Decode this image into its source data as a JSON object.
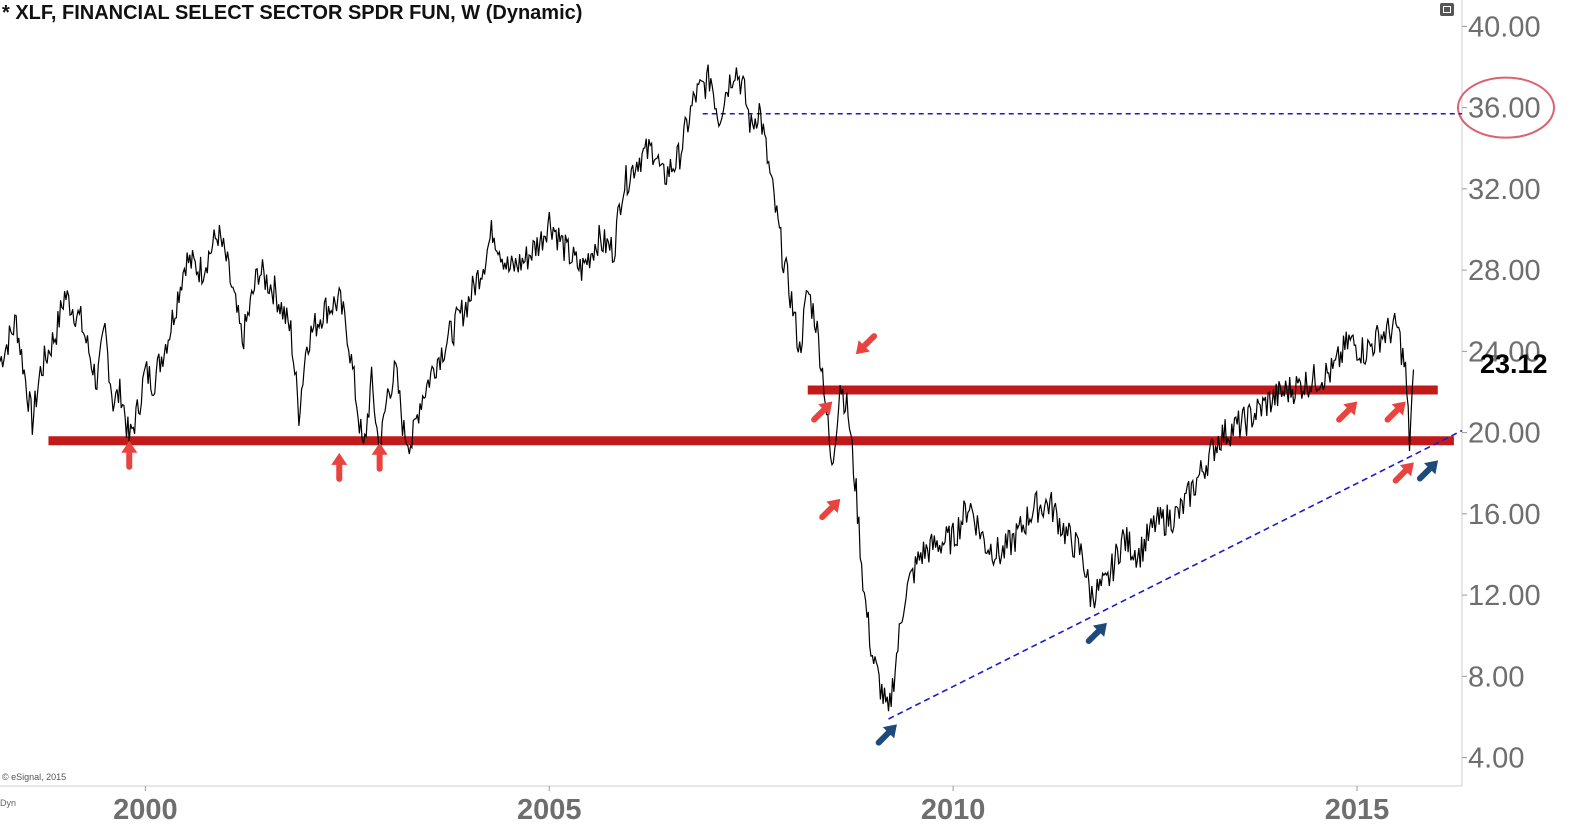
{
  "header": {
    "title": "* XLF, FINANCIAL SELECT SECTOR SPDR FUN, W (Dynamic)",
    "watermark": "© eSignal, 2015",
    "dyn_label": "Dyn",
    "last_price": "23.12"
  },
  "chart_data": {
    "type": "line",
    "title": "* XLF, FINANCIAL SELECT SECTOR SPDR FUN, W (Dynamic)",
    "xlabel": "",
    "ylabel": "",
    "xlim": [
      1998.2,
      2016.3
    ],
    "ylim": [
      2.6,
      41.3
    ],
    "y_ticks": [
      "40.00",
      "36.00",
      "32.00",
      "28.00",
      "24.00",
      "20.00",
      "16.00",
      "12.00",
      "8.00",
      "4.00"
    ],
    "x_ticks": [
      "2000",
      "2005",
      "2010",
      "2015"
    ],
    "highlighted_tick": "36.00",
    "last_price": "23.12",
    "series": [
      {
        "color": "#000000",
        "points": [
          [
            1998.2,
            23.5
          ],
          [
            1998.4,
            25.5
          ],
          [
            1998.6,
            20.5
          ],
          [
            1998.7,
            23.0
          ],
          [
            1998.9,
            25.0
          ],
          [
            1999.0,
            26.8
          ],
          [
            1999.2,
            25.5
          ],
          [
            1999.4,
            22.5
          ],
          [
            1999.5,
            25.0
          ],
          [
            1999.6,
            21.5
          ],
          [
            1999.7,
            22.0
          ],
          [
            1999.8,
            19.6
          ],
          [
            1999.9,
            21.0
          ],
          [
            2000.0,
            23.0
          ],
          [
            2000.1,
            22.5
          ],
          [
            2000.3,
            25.0
          ],
          [
            2000.5,
            28.5
          ],
          [
            2000.7,
            28.0
          ],
          [
            2000.9,
            29.8
          ],
          [
            2001.0,
            28.5
          ],
          [
            2001.2,
            24.5
          ],
          [
            2001.4,
            28.0
          ],
          [
            2001.6,
            27.0
          ],
          [
            2001.8,
            25.0
          ],
          [
            2001.9,
            21.0
          ],
          [
            2002.0,
            24.5
          ],
          [
            2002.2,
            26.0
          ],
          [
            2002.4,
            26.5
          ],
          [
            2002.5,
            25.0
          ],
          [
            2002.6,
            22.0
          ],
          [
            2002.7,
            19.0
          ],
          [
            2002.8,
            22.5
          ],
          [
            2002.9,
            19.0
          ],
          [
            2003.0,
            22.0
          ],
          [
            2003.1,
            23.0
          ],
          [
            2003.2,
            20.0
          ],
          [
            2003.3,
            19.5
          ],
          [
            2003.4,
            21.5
          ],
          [
            2003.6,
            23.5
          ],
          [
            2003.8,
            25.0
          ],
          [
            2004.0,
            26.5
          ],
          [
            2004.2,
            28.5
          ],
          [
            2004.3,
            30.0
          ],
          [
            2004.5,
            28.0
          ],
          [
            2004.7,
            28.5
          ],
          [
            2004.9,
            29.5
          ],
          [
            2005.0,
            30.5
          ],
          [
            2005.2,
            29.0
          ],
          [
            2005.4,
            28.0
          ],
          [
            2005.6,
            29.5
          ],
          [
            2005.8,
            29.0
          ],
          [
            2005.9,
            32.0
          ],
          [
            2006.1,
            33.5
          ],
          [
            2006.3,
            34.0
          ],
          [
            2006.4,
            32.5
          ],
          [
            2006.6,
            33.5
          ],
          [
            2006.8,
            36.5
          ],
          [
            2007.0,
            37.5
          ],
          [
            2007.1,
            35.5
          ],
          [
            2007.2,
            37.0
          ],
          [
            2007.3,
            38.0
          ],
          [
            2007.4,
            37.0
          ],
          [
            2007.5,
            35.0
          ],
          [
            2007.6,
            36.0
          ],
          [
            2007.7,
            33.5
          ],
          [
            2007.8,
            31.0
          ],
          [
            2007.9,
            28.5
          ],
          [
            2008.0,
            26.5
          ],
          [
            2008.1,
            24.0
          ],
          [
            2008.2,
            27.0
          ],
          [
            2008.3,
            25.5
          ],
          [
            2008.4,
            22.5
          ],
          [
            2008.5,
            18.0
          ],
          [
            2008.6,
            22.5
          ],
          [
            2008.7,
            21.0
          ],
          [
            2008.8,
            17.0
          ],
          [
            2008.9,
            12.0
          ],
          [
            2009.0,
            9.0
          ],
          [
            2009.1,
            7.5
          ],
          [
            2009.2,
            6.0
          ],
          [
            2009.3,
            9.0
          ],
          [
            2009.4,
            12.0
          ],
          [
            2009.6,
            14.0
          ],
          [
            2009.8,
            14.5
          ],
          [
            2010.0,
            14.8
          ],
          [
            2010.2,
            16.5
          ],
          [
            2010.4,
            14.5
          ],
          [
            2010.6,
            14.0
          ],
          [
            2010.8,
            15.0
          ],
          [
            2011.0,
            16.3
          ],
          [
            2011.2,
            16.5
          ],
          [
            2011.4,
            15.0
          ],
          [
            2011.6,
            14.0
          ],
          [
            2011.7,
            12.0
          ],
          [
            2011.9,
            12.5
          ],
          [
            2012.1,
            14.8
          ],
          [
            2012.3,
            14.0
          ],
          [
            2012.5,
            15.5
          ],
          [
            2012.8,
            16.0
          ],
          [
            2013.0,
            17.5
          ],
          [
            2013.3,
            19.8
          ],
          [
            2013.6,
            20.5
          ],
          [
            2013.9,
            21.5
          ],
          [
            2014.1,
            22.0
          ],
          [
            2014.4,
            22.5
          ],
          [
            2014.7,
            23.0
          ],
          [
            2014.9,
            24.5
          ],
          [
            2015.1,
            24.0
          ],
          [
            2015.3,
            24.8
          ],
          [
            2015.5,
            25.2
          ],
          [
            2015.6,
            23.0
          ],
          [
            2015.65,
            19.5
          ],
          [
            2015.7,
            23.1
          ]
        ]
      }
    ],
    "horizontal_levels": [
      {
        "y": 35.7,
        "x_start": 2006.9,
        "x_end": 2016.3,
        "style": "dashed",
        "color": "#1a1acc"
      },
      {
        "y": 22.1,
        "x_start": 2008.2,
        "x_end": 2016.0,
        "style": "solid",
        "color": "#c01a1a"
      },
      {
        "y": 19.6,
        "x_start": 1998.8,
        "x_end": 2016.2,
        "style": "solid",
        "color": "#c01a1a"
      }
    ],
    "trendlines": [
      {
        "from": [
          2009.2,
          5.9
        ],
        "to": [
          2016.3,
          20.1
        ],
        "style": "dashed",
        "color": "#1a1acc"
      }
    ],
    "annotations": [
      {
        "type": "arrow",
        "color": "#e8433e",
        "at": [
          1999.8,
          19.6
        ],
        "direction": "up"
      },
      {
        "type": "arrow",
        "color": "#e8433e",
        "at": [
          2002.4,
          19.0
        ],
        "direction": "up"
      },
      {
        "type": "arrow",
        "color": "#e8433e",
        "at": [
          2002.9,
          19.5
        ],
        "direction": "up"
      },
      {
        "type": "arrow",
        "color": "#e8433e",
        "at": [
          2008.5,
          17.0
        ],
        "direction": "up-right"
      },
      {
        "type": "arrow",
        "color": "#e8433e",
        "at": [
          2008.4,
          21.8
        ],
        "direction": "up-right"
      },
      {
        "type": "arrow",
        "color": "#e8433e",
        "at": [
          2008.9,
          23.0
        ],
        "direction": "down-left"
      },
      {
        "type": "arrow",
        "color": "#e8433e",
        "at": [
          2014.9,
          21.8
        ],
        "direction": "up-right"
      },
      {
        "type": "arrow",
        "color": "#e8433e",
        "at": [
          2015.5,
          21.8
        ],
        "direction": "up-right"
      },
      {
        "type": "arrow",
        "color": "#e8433e",
        "at": [
          2015.6,
          18.8
        ],
        "direction": "up-right"
      },
      {
        "type": "arrow",
        "color": "#1d4a7a",
        "at": [
          2009.2,
          5.9
        ],
        "direction": "up-right"
      },
      {
        "type": "arrow",
        "color": "#1d4a7a",
        "at": [
          2011.8,
          10.9
        ],
        "direction": "up-right"
      },
      {
        "type": "arrow",
        "color": "#1d4a7a",
        "at": [
          2015.9,
          18.9
        ],
        "direction": "up-right"
      }
    ]
  }
}
